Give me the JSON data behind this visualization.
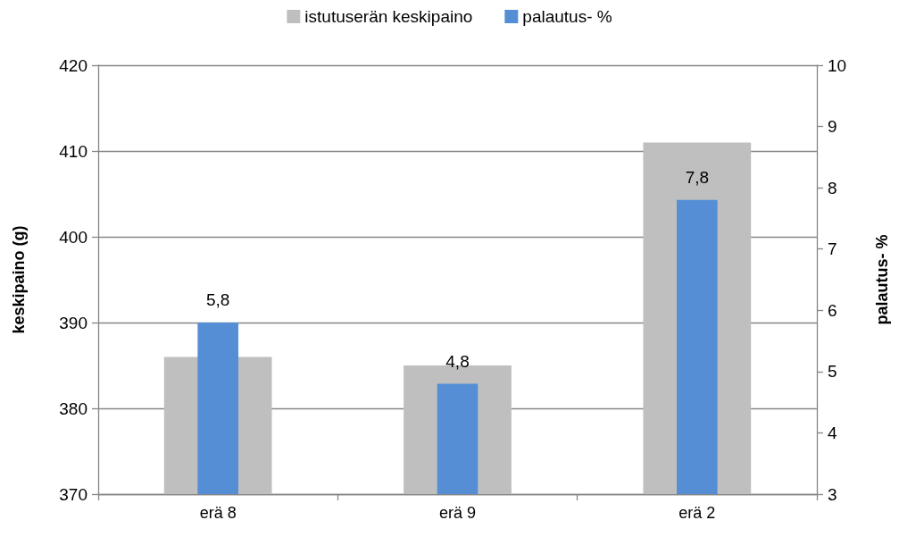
{
  "chart_data": {
    "type": "bar",
    "categories": [
      "erä 8",
      "erä 9",
      "erä 2"
    ],
    "ylabel": "keskipaino (g)",
    "y2label": "palautus- %",
    "ylim": [
      370,
      420
    ],
    "yticks": [
      370,
      380,
      390,
      400,
      410,
      420
    ],
    "y2lim": [
      3,
      10
    ],
    "y2ticks": [
      3,
      4,
      5,
      6,
      7,
      8,
      9,
      10
    ],
    "series": [
      {
        "name": "istutuserän keskipaino",
        "color": "#bfbfbf",
        "values": [
          386,
          385,
          411
        ]
      },
      {
        "name": "palautus- %",
        "color": "#558ed5",
        "values": [
          5.8,
          4.8,
          7.8
        ],
        "axis": "y2",
        "value_labels": [
          "5,8",
          "4,8",
          "7,8"
        ]
      }
    ],
    "grid": "y",
    "legend": "top"
  }
}
